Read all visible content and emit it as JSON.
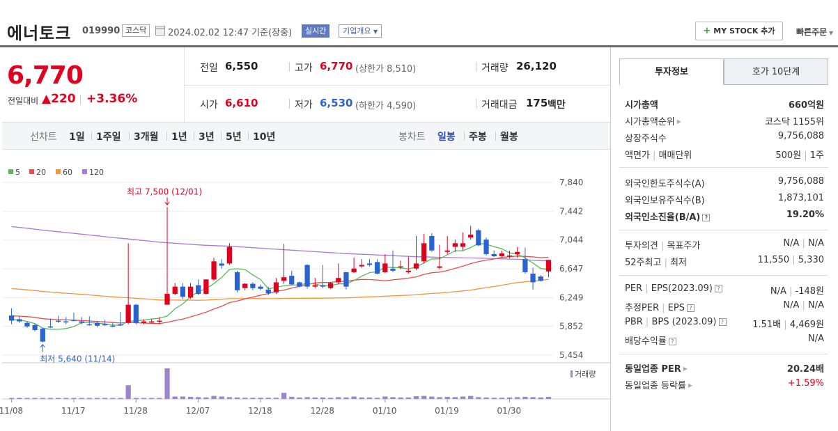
{
  "header": {
    "name": "에너토크",
    "code": "019990",
    "market": "코스닥",
    "datetime": "2024.02.02 12:47 기준(장중)",
    "realtime_label": "실시간",
    "company_label": "기업개요",
    "mystock_plus": "+",
    "mystock_label": "MY STOCK 추가",
    "quick_order": "빠른주문"
  },
  "price": {
    "current": "6,770",
    "change_label": "전일대비",
    "change_abs": "▲220",
    "change_pct": "+3.36%"
  },
  "summary": {
    "prev_label": "전일",
    "prev": "6,550",
    "high_label": "고가",
    "high": "6,770",
    "upper_limit": "(상한가 8,510)",
    "volume_label": "거래량",
    "volume": "26,120",
    "open_label": "시가",
    "open": "6,610",
    "low_label": "저가",
    "low": "6,530",
    "lower_limit": "(하한가 4,590)",
    "amount_label": "거래대금",
    "amount": "175",
    "amount_unit": "백만"
  },
  "range_tabs": {
    "line_label": "선차트",
    "line": [
      "1일",
      "1주일",
      "3개월",
      "1년",
      "3년",
      "5년",
      "10년"
    ],
    "candle_label": "봉차트",
    "candle": [
      "일봉",
      "주봉",
      "월봉"
    ],
    "active": "일봉"
  },
  "chart_data": {
    "type": "candlestick",
    "legend": [
      "5",
      "20",
      "60",
      "120"
    ],
    "colors": {
      "ma5": "#5cb85c",
      "ma20": "#e84c4c",
      "ma60": "#f5953a",
      "ma120": "#a67ad6",
      "up": "#e1001e",
      "down": "#2a63d1",
      "volume": "#9b86c9"
    },
    "y_ticks": [
      "7,840",
      "7,442",
      "7,044",
      "6,647",
      "6,249",
      "5,852",
      "5,454"
    ],
    "ylim": [
      5454,
      7840
    ],
    "x_ticks": [
      "11/08",
      "11/17",
      "11/28",
      "12/07",
      "12/18",
      "12/28",
      "01/10",
      "01/19",
      "01/30"
    ],
    "max_annotation": "최고 7,500 (12/01)",
    "min_annotation": "최저 5,640 (11/14)",
    "volume_label": "거래량",
    "candles": [
      [
        6000,
        6100,
        5930,
        5880
      ],
      [
        5950,
        5990,
        5920,
        5900
      ],
      [
        5900,
        5920,
        5850,
        5830
      ],
      [
        5870,
        5890,
        5800,
        5780
      ],
      [
        5820,
        5830,
        5640,
        5630
      ],
      [
        5850,
        5960,
        5840,
        5830
      ],
      [
        5930,
        6000,
        5920,
        5900
      ],
      [
        5920,
        5980,
        5910,
        5880
      ],
      [
        5940,
        6040,
        5930,
        5920
      ],
      [
        5920,
        5980,
        5900,
        5880
      ],
      [
        5880,
        5990,
        5870,
        5860
      ],
      [
        5900,
        5920,
        5860,
        5840
      ],
      [
        5880,
        5940,
        5870,
        5860
      ],
      [
        5860,
        5900,
        5850,
        5840
      ],
      [
        5880,
        6050,
        5870,
        5860
      ],
      [
        5900,
        7000,
        6150,
        5880
      ],
      [
        6150,
        6160,
        5900,
        5880
      ],
      [
        5900,
        5950,
        5920,
        5880
      ],
      [
        5910,
        5950,
        5920,
        5890
      ],
      [
        5920,
        5980,
        5930,
        5880
      ],
      [
        6150,
        7500,
        6300,
        6150
      ],
      [
        6300,
        6450,
        6400,
        6280
      ],
      [
        6400,
        6450,
        6260,
        6230
      ],
      [
        6250,
        6450,
        6400,
        6230
      ],
      [
        6420,
        6500,
        6300,
        6280
      ],
      [
        6300,
        6500,
        6500,
        6290
      ],
      [
        6500,
        6800,
        6750,
        6480
      ],
      [
        6720,
        6780,
        6690,
        6650
      ],
      [
        6720,
        7000,
        6950,
        6700
      ],
      [
        6600,
        6620,
        6350,
        6320
      ],
      [
        6380,
        6450,
        6440,
        6350
      ],
      [
        6440,
        6460,
        6380,
        6350
      ],
      [
        6400,
        6430,
        6370,
        6350
      ],
      [
        6360,
        6400,
        6310,
        6280
      ],
      [
        6320,
        6520,
        6460,
        6300
      ],
      [
        6480,
        6990,
        6530,
        6440
      ],
      [
        6550,
        6620,
        6430,
        6420
      ],
      [
        6460,
        6470,
        6400,
        6390
      ],
      [
        6700,
        6710,
        6400,
        6370
      ],
      [
        6400,
        6520,
        6420,
        6380
      ],
      [
        6420,
        6700,
        6400,
        6380
      ],
      [
        6380,
        6460,
        6450,
        6370
      ],
      [
        6460,
        6720,
        6520,
        6430
      ],
      [
        6600,
        6600,
        6400,
        6360
      ],
      [
        6600,
        6800,
        6650,
        6590
      ],
      [
        6680,
        6780,
        6700,
        6660
      ],
      [
        6720,
        6780,
        6700,
        6680
      ],
      [
        6740,
        6780,
        6580,
        6570
      ],
      [
        6600,
        6850,
        6720,
        6590
      ],
      [
        6650,
        6900,
        6620,
        6600
      ],
      [
        6680,
        6760,
        6680,
        6640
      ],
      [
        6600,
        6810,
        6620,
        6580
      ],
      [
        6650,
        7100,
        6720,
        6630
      ],
      [
        6750,
        7130,
        7000,
        6720
      ],
      [
        7100,
        7140,
        6900,
        6880
      ],
      [
        6660,
        6980,
        6680,
        6640
      ],
      [
        6880,
        7100,
        6900,
        6850
      ],
      [
        6950,
        7050,
        7000,
        6880
      ],
      [
        6950,
        7150,
        7000,
        6900
      ],
      [
        7080,
        7240,
        7120,
        7050
      ],
      [
        7180,
        7200,
        6970,
        6960
      ],
      [
        7050,
        7080,
        6850,
        6830
      ],
      [
        6850,
        6900,
        6820,
        6810
      ],
      [
        6820,
        6900,
        6860,
        6800
      ],
      [
        6820,
        6900,
        6830,
        6790
      ],
      [
        6850,
        6950,
        6880,
        6800
      ],
      [
        6780,
        6940,
        6600,
        6580
      ],
      [
        6580,
        6660,
        6460,
        6360
      ],
      [
        6540,
        6560,
        6480,
        6470
      ],
      [
        6610,
        6770,
        6770,
        6530
      ]
    ],
    "volumes": [
      0.02,
      0.02,
      0.02,
      0.02,
      0.02,
      0.02,
      0.02,
      0.02,
      0.02,
      0.02,
      0.02,
      0.02,
      0.02,
      0.02,
      0.02,
      0.45,
      0.03,
      0.02,
      0.02,
      0.02,
      1.0,
      0.08,
      0.08,
      0.07,
      0.06,
      0.05,
      0.1,
      0.08,
      0.06,
      0.05,
      0.04,
      0.04,
      0.04,
      0.04,
      0.04,
      0.2,
      0.07,
      0.05,
      0.06,
      0.05,
      0.05,
      0.04,
      0.06,
      0.05,
      0.08,
      0.05,
      0.05,
      0.04,
      0.08,
      0.06,
      0.05,
      0.05,
      0.09,
      0.1,
      0.08,
      0.06,
      0.07,
      0.06,
      0.08,
      0.1,
      0.06,
      0.05,
      0.04,
      0.04,
      0.05,
      0.06,
      0.07,
      0.06,
      0.05,
      0.07
    ]
  },
  "tabs": {
    "invest": "투자정보",
    "quote": "호가 10단계"
  },
  "info": [
    {
      "k": "시가총액",
      "v": "660억원",
      "bold": true
    },
    {
      "k": "시가총액순위",
      "v": "코스닥 1155위",
      "arrow": true
    },
    {
      "k": "상장주식수",
      "v": "9,756,088"
    },
    {
      "k": "액면가",
      "k2": "매매단위",
      "v": "500원",
      "v2": "1주"
    },
    {
      "k": "외국인한도주식수(A)",
      "v": "9,756,088"
    },
    {
      "k": "외국인보유주식수(B)",
      "v": "1,873,101"
    },
    {
      "k": "외국인소진율(B/A)",
      "v": "19.20%",
      "bold": true,
      "q": true
    },
    {
      "k": "투자의견",
      "k2": "목표주가",
      "v": "N/A",
      "v2": "N/A"
    },
    {
      "k": "52주최고",
      "k2": "최저",
      "v": "11,550",
      "v2": "5,330"
    },
    {
      "k": "PER",
      "k2": "EPS(2023.09)",
      "v": "N/A",
      "v2": "-148원",
      "q": true
    },
    {
      "k": "추정PER",
      "k2": "EPS",
      "v": "N/A",
      "v2": "N/A",
      "q": true
    },
    {
      "k": "PBR",
      "k2": "BPS (2023.09)",
      "v": "1.51배",
      "v2": "4,469원",
      "q": true
    },
    {
      "k": "배당수익률",
      "v": "N/A",
      "q": true
    },
    {
      "k": "동일업종 PER",
      "v": "20.24배",
      "bold": true,
      "arrow": true
    },
    {
      "k": "동일업종 등락률",
      "v": "+1.59%",
      "arrow": true,
      "up": true
    }
  ]
}
